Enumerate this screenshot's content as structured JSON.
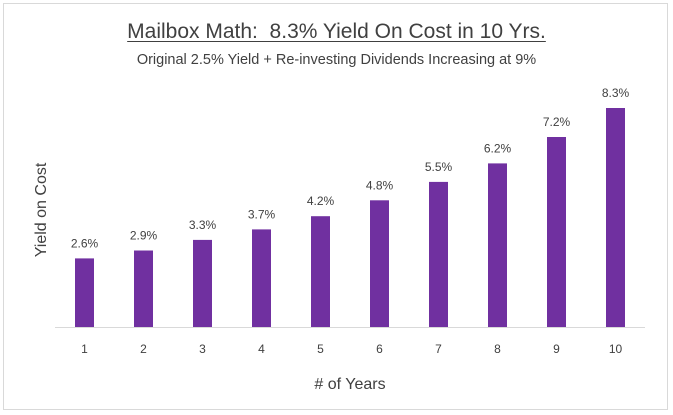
{
  "chart_data": {
    "type": "bar",
    "title": "Mailbox Math:  8.3% Yield On Cost in 10 Yrs.",
    "subtitle": "Original 2.5% Yield + Re-investing Dividends Increasing at 9%",
    "xlabel": "# of Years",
    "ylabel": "Yield on Cost",
    "categories": [
      "1",
      "2",
      "3",
      "4",
      "5",
      "6",
      "7",
      "8",
      "9",
      "10"
    ],
    "values": [
      2.6,
      2.9,
      3.3,
      3.7,
      4.2,
      4.8,
      5.5,
      6.2,
      7.2,
      8.3
    ],
    "data_labels": [
      "2.6%",
      "2.9%",
      "3.3%",
      "3.7%",
      "4.2%",
      "4.8%",
      "5.5%",
      "6.2%",
      "7.2%",
      "8.3%"
    ],
    "ylim": [
      0,
      8.3
    ],
    "grid": false,
    "legend": "none",
    "bar_color": "#7030a0",
    "text_color": "#404040",
    "axis_color": "#d9d9d9"
  }
}
